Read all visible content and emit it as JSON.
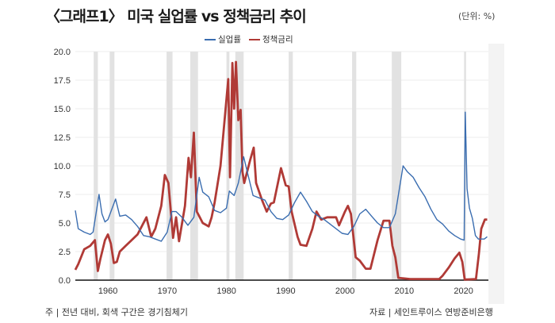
{
  "header": {
    "title": "〈그래프1〉 미국 실업률 vs 정책금리 추이",
    "unit": "(단위: %)"
  },
  "footer": {
    "note": "주 | 전년 대비, 회색 구간은 경기침체기",
    "source": "자료 | 세인트루이스 연방준비은행"
  },
  "chart_data": {
    "type": "line",
    "title": "〈그래프1〉 미국 실업률 vs 정책금리 추이",
    "xlabel": "",
    "ylabel": "%",
    "xlim": [
      1954.5,
      2024.2
    ],
    "ylim": [
      0,
      20
    ],
    "yticks": [
      0,
      2.5,
      5,
      7.5,
      10,
      12.5,
      15,
      17.5,
      20
    ],
    "ytick_labels": [
      "0.0",
      "2.5",
      "5.0",
      "7.5",
      "10.0",
      "12.5",
      "15.0",
      "17.5",
      "20.0"
    ],
    "xticks": [
      1960,
      1970,
      1980,
      1990,
      2000,
      2010,
      2020
    ],
    "xtick_labels": [
      "1960",
      "1970",
      "1980",
      "1990",
      "2000",
      "2010",
      "2020"
    ],
    "grid": true,
    "legend": "top-center",
    "recessions": [
      [
        1957.6,
        1958.3
      ],
      [
        1960.3,
        1961.1
      ],
      [
        1969.9,
        1970.9
      ],
      [
        1973.9,
        1975.2
      ],
      [
        1980.0,
        1980.5
      ],
      [
        1981.5,
        1982.9
      ],
      [
        1990.5,
        1991.2
      ],
      [
        2001.2,
        2001.9
      ],
      [
        2007.9,
        2009.5
      ],
      [
        2020.1,
        2020.3
      ]
    ],
    "series": [
      {
        "name": "실업률",
        "color": "#3a6db0",
        "points": [
          [
            1954.5,
            6.1
          ],
          [
            1955,
            4.5
          ],
          [
            1956,
            4.2
          ],
          [
            1957,
            4.0
          ],
          [
            1957.5,
            4.2
          ],
          [
            1958.5,
            7.5
          ],
          [
            1959,
            5.8
          ],
          [
            1959.5,
            5.1
          ],
          [
            1960,
            5.3
          ],
          [
            1961.3,
            7.1
          ],
          [
            1962,
            5.6
          ],
          [
            1963,
            5.7
          ],
          [
            1964,
            5.3
          ],
          [
            1965,
            4.7
          ],
          [
            1966,
            3.9
          ],
          [
            1967,
            3.8
          ],
          [
            1968,
            3.6
          ],
          [
            1969,
            3.4
          ],
          [
            1970,
            4.2
          ],
          [
            1970.8,
            6.0
          ],
          [
            1971.5,
            6.0
          ],
          [
            1972.5,
            5.5
          ],
          [
            1973.5,
            4.8
          ],
          [
            1974.5,
            5.5
          ],
          [
            1975.4,
            9.0
          ],
          [
            1976,
            7.7
          ],
          [
            1977,
            7.3
          ],
          [
            1978,
            6.1
          ],
          [
            1979,
            5.9
          ],
          [
            1980,
            6.3
          ],
          [
            1980.5,
            7.8
          ],
          [
            1981.3,
            7.4
          ],
          [
            1982,
            8.5
          ],
          [
            1982.9,
            10.8
          ],
          [
            1983.5,
            9.5
          ],
          [
            1984.5,
            7.4
          ],
          [
            1985.5,
            7.2
          ],
          [
            1986.5,
            7.0
          ],
          [
            1987.5,
            6.0
          ],
          [
            1988.5,
            5.4
          ],
          [
            1989.5,
            5.3
          ],
          [
            1990.5,
            5.7
          ],
          [
            1991.5,
            6.8
          ],
          [
            1992.5,
            7.7
          ],
          [
            1993.5,
            6.9
          ],
          [
            1994.5,
            6.0
          ],
          [
            1995.5,
            5.6
          ],
          [
            1996.5,
            5.3
          ],
          [
            1997.5,
            4.9
          ],
          [
            1998.5,
            4.5
          ],
          [
            1999.5,
            4.1
          ],
          [
            2000.5,
            4.0
          ],
          [
            2001.5,
            4.7
          ],
          [
            2002.5,
            5.8
          ],
          [
            2003.5,
            6.2
          ],
          [
            2004.5,
            5.6
          ],
          [
            2005.5,
            5.0
          ],
          [
            2006.5,
            4.6
          ],
          [
            2007.5,
            4.6
          ],
          [
            2008.5,
            5.8
          ],
          [
            2009.8,
            10.0
          ],
          [
            2010.5,
            9.5
          ],
          [
            2011.5,
            9.0
          ],
          [
            2012.5,
            8.1
          ],
          [
            2013.5,
            7.3
          ],
          [
            2014.5,
            6.2
          ],
          [
            2015.5,
            5.3
          ],
          [
            2016.5,
            4.9
          ],
          [
            2017.5,
            4.3
          ],
          [
            2018.5,
            3.9
          ],
          [
            2019.5,
            3.6
          ],
          [
            2020.1,
            3.5
          ],
          [
            2020.3,
            14.7
          ],
          [
            2020.6,
            8.0
          ],
          [
            2021,
            6.3
          ],
          [
            2021.5,
            5.4
          ],
          [
            2022,
            3.9
          ],
          [
            2022.5,
            3.6
          ],
          [
            2023.5,
            3.6
          ],
          [
            2024,
            3.8
          ]
        ]
      },
      {
        "name": "정책금리",
        "color": "#b03a36",
        "points": [
          [
            1954.5,
            0.9
          ],
          [
            1955,
            1.4
          ],
          [
            1956,
            2.7
          ],
          [
            1957,
            3.0
          ],
          [
            1957.8,
            3.5
          ],
          [
            1958.3,
            0.8
          ],
          [
            1958.7,
            1.8
          ],
          [
            1959.5,
            3.5
          ],
          [
            1960,
            4.0
          ],
          [
            1960.5,
            3.2
          ],
          [
            1961,
            1.5
          ],
          [
            1961.5,
            1.6
          ],
          [
            1962,
            2.5
          ],
          [
            1963,
            3.0
          ],
          [
            1964,
            3.5
          ],
          [
            1965,
            4.0
          ],
          [
            1966.5,
            5.5
          ],
          [
            1967.3,
            3.8
          ],
          [
            1968,
            4.5
          ],
          [
            1969,
            6.5
          ],
          [
            1969.6,
            9.2
          ],
          [
            1970.2,
            8.5
          ],
          [
            1971,
            3.7
          ],
          [
            1971.5,
            5.5
          ],
          [
            1972,
            3.4
          ],
          [
            1973,
            6.5
          ],
          [
            1973.6,
            10.7
          ],
          [
            1974,
            9.0
          ],
          [
            1974.5,
            12.9
          ],
          [
            1975,
            6.0
          ],
          [
            1975.5,
            5.5
          ],
          [
            1976,
            5.0
          ],
          [
            1977,
            4.7
          ],
          [
            1977.5,
            5.5
          ],
          [
            1978,
            6.8
          ],
          [
            1979,
            10.0
          ],
          [
            1980.3,
            17.6
          ],
          [
            1980.6,
            9.0
          ],
          [
            1981,
            19.0
          ],
          [
            1981.3,
            15.0
          ],
          [
            1981.6,
            19.1
          ],
          [
            1982,
            14.0
          ],
          [
            1982.4,
            14.9
          ],
          [
            1982.7,
            9.5
          ],
          [
            1983,
            8.5
          ],
          [
            1984,
            10.5
          ],
          [
            1984.6,
            11.6
          ],
          [
            1985,
            8.5
          ],
          [
            1986,
            7.0
          ],
          [
            1986.8,
            6.0
          ],
          [
            1987.5,
            6.7
          ],
          [
            1988,
            6.8
          ],
          [
            1989.2,
            9.8
          ],
          [
            1990,
            8.3
          ],
          [
            1990.5,
            8.2
          ],
          [
            1991,
            6.0
          ],
          [
            1992,
            3.8
          ],
          [
            1992.5,
            3.1
          ],
          [
            1993.5,
            3.0
          ],
          [
            1994.5,
            4.5
          ],
          [
            1995.2,
            6.0
          ],
          [
            1996,
            5.3
          ],
          [
            1997,
            5.5
          ],
          [
            1998.5,
            5.5
          ],
          [
            1999,
            4.8
          ],
          [
            2000,
            6.0
          ],
          [
            2000.5,
            6.5
          ],
          [
            2001,
            5.8
          ],
          [
            2001.8,
            2.0
          ],
          [
            2002.5,
            1.7
          ],
          [
            2003.5,
            1.0
          ],
          [
            2004.3,
            1.0
          ],
          [
            2005.5,
            3.5
          ],
          [
            2006.5,
            5.2
          ],
          [
            2007.5,
            5.2
          ],
          [
            2008,
            3.0
          ],
          [
            2008.5,
            2.0
          ],
          [
            2009,
            0.2
          ],
          [
            2011,
            0.1
          ],
          [
            2015.9,
            0.1
          ],
          [
            2016.5,
            0.4
          ],
          [
            2017.5,
            1.1
          ],
          [
            2018.5,
            1.9
          ],
          [
            2019.3,
            2.4
          ],
          [
            2019.8,
            1.6
          ],
          [
            2020.2,
            0.05
          ],
          [
            2022.1,
            0.1
          ],
          [
            2022.6,
            2.3
          ],
          [
            2023,
            4.5
          ],
          [
            2023.6,
            5.3
          ],
          [
            2024,
            5.3
          ]
        ]
      }
    ]
  }
}
